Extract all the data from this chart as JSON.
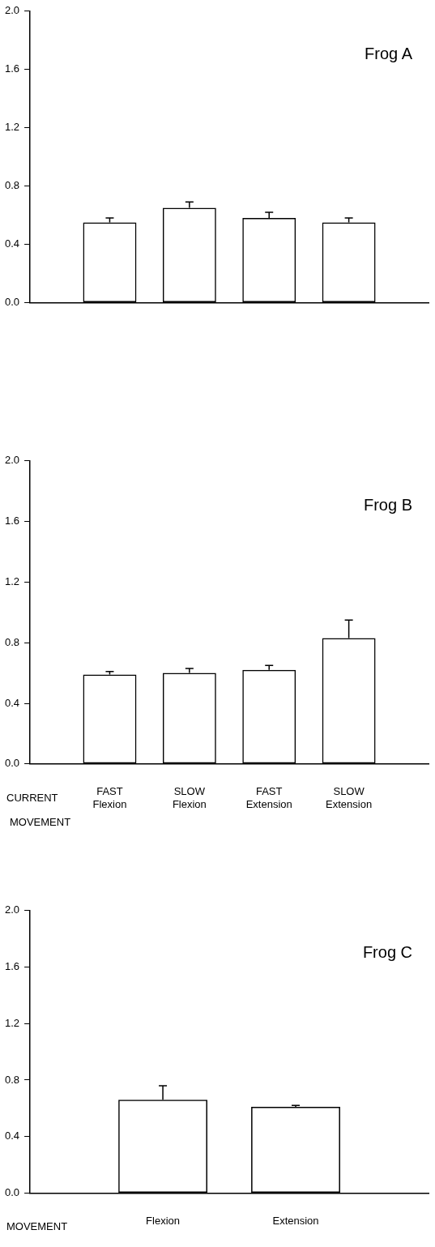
{
  "chart_data": [
    {
      "type": "bar",
      "title": "Frog A",
      "categories": [
        null,
        null,
        null,
        null
      ],
      "values": [
        0.55,
        0.65,
        0.58,
        0.55
      ],
      "errors": [
        0.03,
        0.04,
        0.04,
        0.03
      ],
      "color": "#000000",
      "ylim": [
        0,
        2
      ],
      "yticks": [
        {
          "value": 0,
          "label": "0.0"
        },
        {
          "value": 0.4,
          "label": "0.4"
        },
        {
          "value": 0.8,
          "label": "0.8"
        },
        {
          "value": 1.2,
          "label": "1.2"
        },
        {
          "value": 1.6,
          "label": "1.6"
        },
        {
          "value": 2,
          "label": "2.0"
        }
      ]
    },
    {
      "type": "bar",
      "title": "Frog B",
      "xlabel": "CURRENT\nMOVEMENT",
      "categories": [
        "FAST\nFlexion",
        "SLOW\nFlexion",
        "FAST\nExtension",
        "SLOW\nExtension"
      ],
      "values": [
        0.59,
        0.6,
        0.62,
        0.83
      ],
      "errors": [
        0.02,
        0.03,
        0.03,
        0.12
      ],
      "color": "#000000",
      "ylim": [
        0,
        2
      ],
      "yticks": [
        {
          "value": 0,
          "label": "0.0"
        },
        {
          "value": 0.4,
          "label": "0.4"
        },
        {
          "value": 0.8,
          "label": "0.8"
        },
        {
          "value": 1.2,
          "label": "1.2"
        },
        {
          "value": 1.6,
          "label": "1.6"
        },
        {
          "value": 2,
          "label": "2.0"
        }
      ]
    },
    {
      "type": "bar",
      "title": "Frog C",
      "xlabel": "MOVEMENT",
      "categories": [
        "Flexion",
        "Extension"
      ],
      "values": [
        0.66,
        0.61
      ],
      "errors": [
        0.1,
        0.01
      ],
      "color": "#000000",
      "ylim": [
        0,
        2
      ],
      "yticks": [
        {
          "value": 0,
          "label": "0.0"
        },
        {
          "value": 0.4,
          "label": "0.4"
        },
        {
          "value": 0.8,
          "label": "0.8"
        },
        {
          "value": 1.2,
          "label": "1.2"
        },
        {
          "value": 1.6,
          "label": "1.6"
        },
        {
          "value": 2,
          "label": "2.0"
        }
      ]
    }
  ]
}
